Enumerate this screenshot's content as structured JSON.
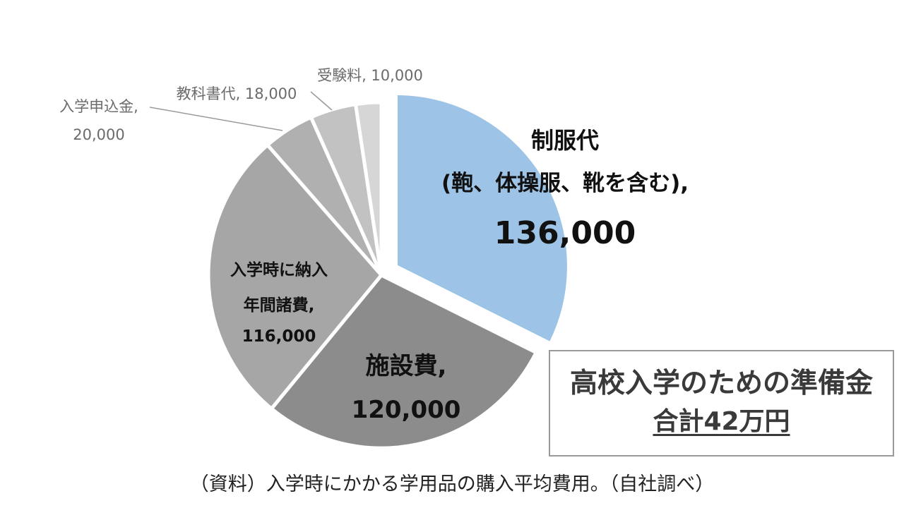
{
  "chart_data": {
    "type": "pie",
    "title": "",
    "slices": [
      {
        "lines": [
          "制服代",
          "(鞄、体操服、靴を含む),",
          "136,000"
        ],
        "value": 136000,
        "color": "#9dc3e6",
        "exploded": true
      },
      {
        "lines": [
          "施設費,",
          "120,000"
        ],
        "value": 120000,
        "color": "#8c8c8c"
      },
      {
        "lines": [
          "入学時に納入",
          "年間諸費,",
          "116,000"
        ],
        "value": 116000,
        "color": "#a6a6a6"
      },
      {
        "lines": [
          "入学申込金,",
          "20,000"
        ],
        "value": 20000,
        "color": "#b0b0b0"
      },
      {
        "lines": [
          "教科書代, 18,000"
        ],
        "value": 18000,
        "color": "#c2c2c2"
      },
      {
        "lines": [
          "受験料, 10,000"
        ],
        "value": 10000,
        "color": "#d6d6d6"
      }
    ]
  },
  "summary": {
    "title": "高校入学のための準備金",
    "total": "合計42万円"
  },
  "note": "（資料）入学時にかかる学用品の購入平均費用。（自社調べ）"
}
